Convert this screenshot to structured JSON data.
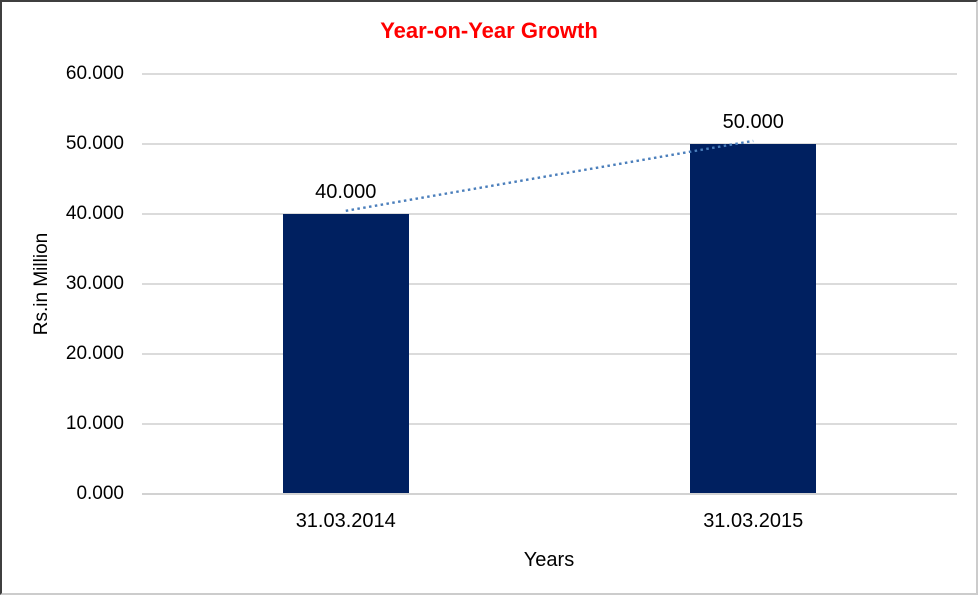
{
  "chart_data": {
    "type": "bar",
    "title": "Year-on-Year Growth",
    "title_color": "#FF0000",
    "categories": [
      "31.03.2014",
      "31.03.2015"
    ],
    "values": [
      40,
      50
    ],
    "data_labels": [
      "40.000",
      "50.000"
    ],
    "xlabel": "Years",
    "ylabel": "Rs.in Million",
    "ylim": [
      0,
      60
    ],
    "y_tick_step": 10,
    "y_tick_labels": [
      "0.000",
      "10.000",
      "20.000",
      "30.000",
      "40.000",
      "50.000",
      "60.000"
    ],
    "grid": true,
    "legend": "none",
    "bar_color": "#002060",
    "gridline_color": "#DBDBDB",
    "axis_line_color": "#D2D2D2",
    "label_color": "#000000",
    "trendline": {
      "style": "dotted",
      "color": "#4A7EBB",
      "from_value": 40,
      "to_value": 50
    }
  }
}
